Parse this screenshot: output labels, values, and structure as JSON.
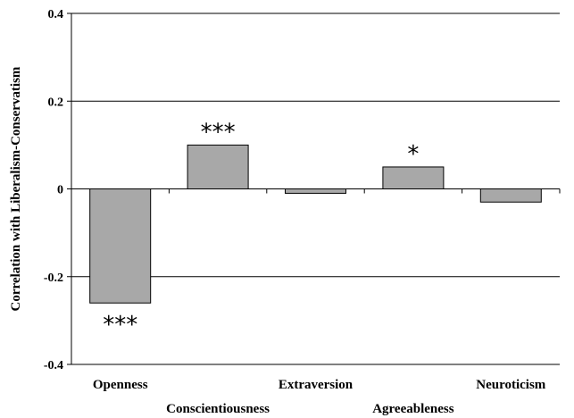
{
  "chart_data": {
    "type": "bar",
    "categories": [
      "Openness",
      "Conscientiousness",
      "Extraversion",
      "Agreeableness",
      "Neuroticism"
    ],
    "values": [
      -0.26,
      0.1,
      -0.01,
      0.05,
      -0.03
    ],
    "significance": [
      "***",
      "***",
      "",
      "*",
      ""
    ],
    "ylabel": "Correlation with Liberalism-Conservatism",
    "xlabel": "",
    "ylim": [
      -0.4,
      0.4
    ],
    "yticks": [
      -0.4,
      -0.2,
      0,
      0.2,
      0.4
    ],
    "ytick_labels": [
      "-0.4",
      "-0.2",
      "0",
      "0.2",
      "0.4"
    ],
    "grid": true,
    "bar_color": "#a8a8a8"
  }
}
